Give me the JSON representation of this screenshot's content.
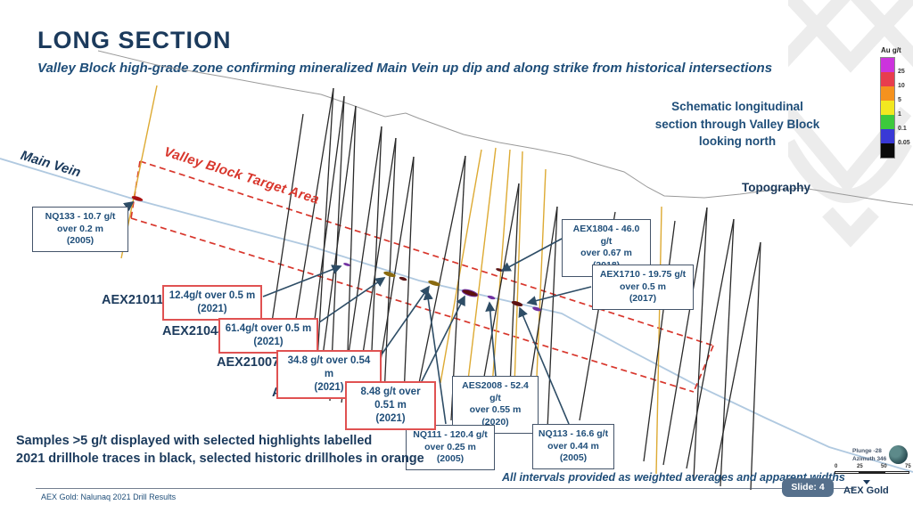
{
  "slide": {
    "title": "LONG SECTION",
    "subtitle": "Valley Block high-grade zone confirming mineralized Main Vein up dip and along strike from historical intersections",
    "schematic_note": "Schematic longitudinal section through Valley Block looking north",
    "samples_note_line1": "Samples >5 g/t displayed with selected highlights labelled",
    "samples_note_line2": "2021 drillhole traces in black, selected historic drillholes in orange",
    "intervals_note": "All intervals provided as weighted averages and apparent widths",
    "footer_text": "AEX Gold: Nalunaq 2021 Drill Results",
    "slide_badge": "Slide: 4",
    "brand": "AEX Gold"
  },
  "legend": {
    "title": "Au g/t",
    "ticks": [
      "25",
      "10",
      "5",
      "1",
      "0.1",
      "0.05"
    ],
    "colors": [
      "#cc33dd",
      "#e83d4e",
      "#f5921e",
      "#f2e820",
      "#3cc93c",
      "#3939d6",
      "#0a0a0a"
    ]
  },
  "diagram": {
    "labels": {
      "main_vein": "Main Vein",
      "target_area": "Valley Block Target Area",
      "topography": "Topography"
    },
    "hole_labels": [
      "AEX21011",
      "AEX21044",
      "AEX21007",
      "AEX21009"
    ],
    "callouts_historic": [
      {
        "line1": "NQ133 - 10.7 g/t",
        "line2": "over 0.2 m",
        "line3": "(2005)"
      },
      {
        "line1": "AEX1804 - 46.0 g/t",
        "line2": "over 0.67 m",
        "line3": "(2018)"
      },
      {
        "line1": "AEX1710 - 19.75 g/t",
        "line2": "over 0.5 m",
        "line3": "(2017)"
      },
      {
        "line1": "AES2008 - 52.4 g/t",
        "line2": "over 0.55 m",
        "line3": "(2020)"
      },
      {
        "line1": "NQ111 - 120.4 g/t",
        "line2": "over 0.25 m",
        "line3": "(2005)"
      },
      {
        "line1": "NQ113 - 16.6 g/t",
        "line2": "over 0.44 m",
        "line3": "(2005)"
      }
    ],
    "callouts_2021": [
      {
        "line1": "12.4g/t over 0.5 m",
        "line2": "(2021)"
      },
      {
        "line1": "61.4g/t over 0.5 m",
        "line2": "(2021)"
      },
      {
        "line1": "34.8 g/t over 0.54 m",
        "line2": "(2021)"
      },
      {
        "line1": "8.48 g/t over 0.51 m",
        "line2": "(2021)"
      }
    ],
    "view": {
      "plunge": "Plunge -28",
      "azimuth": "Azimuth 346",
      "scale_ticks": [
        "0",
        "25",
        "50",
        "75"
      ]
    },
    "colors": {
      "drill_2021": "#2a2a2a",
      "drill_historic": "#ddaa33",
      "main_vein_line": "#b0c9e0",
      "topography_line": "#9a9a9a",
      "target_area_outline": "#d8362c",
      "leader_arrow": "#2e4d66",
      "title_navy": "#1b3a5c",
      "text_blue": "#1f4e79",
      "red_box_border": "#e05252"
    }
  }
}
